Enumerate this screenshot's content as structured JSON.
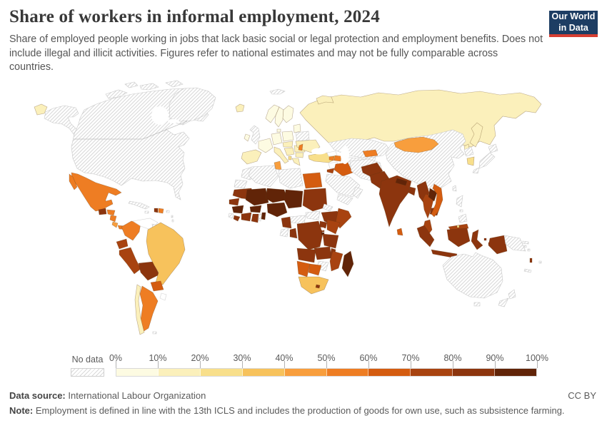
{
  "header": {
    "title": "Share of workers in informal employment, 2024",
    "subtitle": "Share of employed people working in jobs that lack basic social or legal protection and employment benefits. Does not include illegal and illicit activities. Figures refer to national estimates and may not be fully comparable across countries.",
    "logo": {
      "line1": "Our World",
      "line2": "in Data",
      "bg_color": "#1d3d63",
      "stripe_color": "#d63e32"
    }
  },
  "legend": {
    "no_data_label": "No data",
    "tick_labels": [
      "0%",
      "10%",
      "20%",
      "30%",
      "40%",
      "50%",
      "60%",
      "70%",
      "80%",
      "90%",
      "100%"
    ],
    "bin_colors": [
      "#fdfbe2",
      "#fbf0bb",
      "#f8df8b",
      "#f7c25c",
      "#f89e3d",
      "#ee7d23",
      "#d45c10",
      "#a84310",
      "#8c350e",
      "#612408"
    ]
  },
  "footer": {
    "source_label": "Data source:",
    "source_text": "International Labour Organization",
    "license": "CC BY",
    "note_label": "Note:",
    "note_text": "Employment is defined in line with the 13th ICLS and includes the production of goods for own use, such as subsistence farming."
  },
  "chart_data": {
    "type": "heatmap",
    "subtype": "choropleth-world-map",
    "title": "Share of workers in informal employment, 2024",
    "unit": "%",
    "year": 2024,
    "value_range": [
      0,
      100
    ],
    "bins": [
      0,
      10,
      20,
      30,
      40,
      50,
      60,
      70,
      80,
      90,
      100
    ],
    "regions": [
      {
        "id": "canada",
        "name": "Canada",
        "value": null,
        "status": "no-data"
      },
      {
        "id": "united-states",
        "name": "United States",
        "value": null,
        "status": "no-data"
      },
      {
        "id": "greenland",
        "name": "Greenland",
        "value": null,
        "status": "no-data"
      },
      {
        "id": "iceland",
        "name": "Iceland",
        "value": 10
      },
      {
        "id": "mexico",
        "name": "Mexico",
        "value": 54
      },
      {
        "id": "guatemala",
        "name": "Guatemala",
        "value": 82
      },
      {
        "id": "honduras",
        "name": "Honduras",
        "value": 56
      },
      {
        "id": "nicaragua",
        "name": "Nicaragua",
        "value": 58
      },
      {
        "id": "costa-rica",
        "name": "Costa Rica",
        "value": 42
      },
      {
        "id": "panama",
        "name": "Panama",
        "value": 52
      },
      {
        "id": "cuba",
        "name": "Cuba",
        "value": null,
        "status": "no-data"
      },
      {
        "id": "jamaica",
        "name": "Jamaica",
        "value": null,
        "status": "no-data"
      },
      {
        "id": "haiti",
        "name": "Haiti",
        "value": 88
      },
      {
        "id": "dominican-republic",
        "name": "Dominican Republic",
        "value": 55
      },
      {
        "id": "puerto-rico",
        "name": "Puerto Rico",
        "value": null,
        "status": "no-data"
      },
      {
        "id": "lesser-antilles",
        "name": "Lesser Antilles",
        "value": null,
        "status": "no-data"
      },
      {
        "id": "colombia",
        "name": "Colombia",
        "value": 56
      },
      {
        "id": "venezuela",
        "name": "Venezuela",
        "value": null,
        "status": "blank"
      },
      {
        "id": "guyana",
        "name": "Guyana and Suriname",
        "value": null,
        "status": "no-data"
      },
      {
        "id": "french-guiana",
        "name": "French Guiana",
        "value": null,
        "status": "blank"
      },
      {
        "id": "ecuador",
        "name": "Ecuador",
        "value": 72
      },
      {
        "id": "peru",
        "name": "Peru",
        "value": 72
      },
      {
        "id": "bolivia",
        "name": "Bolivia",
        "value": 84
      },
      {
        "id": "brazil",
        "name": "Brazil",
        "value": 38
      },
      {
        "id": "paraguay",
        "name": "Paraguay",
        "value": 66
      },
      {
        "id": "uruguay",
        "name": "Uruguay",
        "value": null,
        "status": "blank"
      },
      {
        "id": "argentina",
        "name": "Argentina",
        "value": 50
      },
      {
        "id": "chile",
        "name": "Chile",
        "value": 18
      },
      {
        "id": "falkland-islands",
        "name": "Falkland Islands",
        "value": null,
        "status": "no-data"
      },
      {
        "id": "norway",
        "name": "Norway",
        "value": 8
      },
      {
        "id": "sweden",
        "name": "Sweden",
        "value": 8
      },
      {
        "id": "finland",
        "name": "Finland",
        "value": 8
      },
      {
        "id": "denmark",
        "name": "Denmark",
        "value": 9
      },
      {
        "id": "united-kingdom",
        "name": "United Kingdom",
        "value": null,
        "status": "no-data"
      },
      {
        "id": "ireland",
        "name": "Ireland",
        "value": 8
      },
      {
        "id": "germany",
        "name": "Germany",
        "value": 6
      },
      {
        "id": "poland",
        "name": "Poland",
        "value": 9
      },
      {
        "id": "baltic-states",
        "name": "Baltic States",
        "value": 9
      },
      {
        "id": "belarus",
        "name": "Belarus",
        "value": null,
        "status": "no-data"
      },
      {
        "id": "france",
        "name": "France",
        "value": 6
      },
      {
        "id": "spain-portugal",
        "name": "Spain and Portugal",
        "value": 13
      },
      {
        "id": "italy",
        "name": "Italy",
        "value": 12
      },
      {
        "id": "czechia-hungary",
        "name": "Central Europe",
        "value": 10
      },
      {
        "id": "balkans",
        "name": "Western Balkans",
        "value": 17
      },
      {
        "id": "albania",
        "name": "Albania",
        "value": 27
      },
      {
        "id": "romania",
        "name": "Romania",
        "value": 13
      },
      {
        "id": "bulgaria",
        "name": "Bulgaria",
        "value": 16
      },
      {
        "id": "greece",
        "name": "Greece",
        "value": 18
      },
      {
        "id": "ukraine",
        "name": "Ukraine",
        "value": 16
      },
      {
        "id": "moldova",
        "name": "Moldova",
        "value": 55
      },
      {
        "id": "russia",
        "name": "Russia",
        "value": 15
      },
      {
        "id": "svalbard",
        "name": "Svalbard",
        "value": null,
        "status": "no-data"
      },
      {
        "id": "turkey",
        "name": "Turkey",
        "value": 28
      },
      {
        "id": "georgia",
        "name": "Georgia",
        "value": null,
        "status": "blank"
      },
      {
        "id": "armenia",
        "name": "Armenia",
        "value": 52
      },
      {
        "id": "azerbaijan",
        "name": "Azerbaijan",
        "value": 55
      },
      {
        "id": "syria",
        "name": "Syria",
        "value": null,
        "status": "blank"
      },
      {
        "id": "jordan",
        "name": "Jordan",
        "value": 75
      },
      {
        "id": "iraq",
        "name": "Iraq",
        "value": 64
      },
      {
        "id": "iran",
        "name": "Iran",
        "value": null,
        "status": "no-data"
      },
      {
        "id": "saudi-arabia",
        "name": "Saudi Arabia",
        "value": null,
        "status": "no-data"
      },
      {
        "id": "yemen",
        "name": "Yemen",
        "value": null,
        "status": "no-data"
      },
      {
        "id": "oman",
        "name": "Oman",
        "value": null,
        "status": "no-data"
      },
      {
        "id": "kazakhstan",
        "name": "Kazakhstan",
        "value": null,
        "status": "no-data"
      },
      {
        "id": "uzbekistan-turkmenistan",
        "name": "Uzbekistan and Turkmenistan",
        "value": null,
        "status": "no-data"
      },
      {
        "id": "kyrgyzstan",
        "name": "Kyrgyzstan",
        "value": 55
      },
      {
        "id": "tajikistan",
        "name": "Tajikistan",
        "value": null,
        "status": "no-data"
      },
      {
        "id": "afghanistan",
        "name": "Afghanistan",
        "value": 88
      },
      {
        "id": "pakistan",
        "name": "Pakistan",
        "value": 85
      },
      {
        "id": "india",
        "name": "India",
        "value": 88
      },
      {
        "id": "nepal",
        "name": "Nepal",
        "value": 92
      },
      {
        "id": "bangladesh",
        "name": "Bangladesh",
        "value": 85
      },
      {
        "id": "sri-lanka",
        "name": "Sri Lanka",
        "value": 64
      },
      {
        "id": "china",
        "name": "China",
        "value": null,
        "status": "no-data"
      },
      {
        "id": "mongolia",
        "name": "Mongolia",
        "value": 47
      },
      {
        "id": "north-korea",
        "name": "North Korea",
        "value": null,
        "status": "no-data"
      },
      {
        "id": "south-korea",
        "name": "South Korea",
        "value": 24
      },
      {
        "id": "japan",
        "name": "Japan",
        "value": null,
        "status": "no-data"
      },
      {
        "id": "taiwan",
        "name": "Taiwan",
        "value": null,
        "status": "no-data"
      },
      {
        "id": "myanmar",
        "name": "Myanmar",
        "value": 87
      },
      {
        "id": "thailand",
        "name": "Thailand",
        "value": 72
      },
      {
        "id": "laos",
        "name": "Laos",
        "value": 92
      },
      {
        "id": "cambodia",
        "name": "Cambodia",
        "value": 86
      },
      {
        "id": "vietnam",
        "name": "Vietnam",
        "value": 67
      },
      {
        "id": "malaysia",
        "name": "Malaysia",
        "value": 72
      },
      {
        "id": "brunei",
        "name": "Brunei",
        "value": 25
      },
      {
        "id": "indonesia",
        "name": "Indonesia",
        "value": 82
      },
      {
        "id": "timor-leste",
        "name": "Timor-Leste",
        "value": 82
      },
      {
        "id": "philippines",
        "name": "Philippines",
        "value": null,
        "status": "no-data"
      },
      {
        "id": "papua-new-guinea",
        "name": "Papua New Guinea",
        "value": null,
        "status": "no-data"
      },
      {
        "id": "morocco",
        "name": "Morocco",
        "value": null,
        "status": "no-data"
      },
      {
        "id": "western-sahara",
        "name": "Western Sahara",
        "value": null,
        "status": "no-data"
      },
      {
        "id": "algeria",
        "name": "Algeria",
        "value": null,
        "status": "no-data"
      },
      {
        "id": "tunisia",
        "name": "Tunisia",
        "value": 44
      },
      {
        "id": "libya",
        "name": "Libya",
        "value": null,
        "status": "no-data"
      },
      {
        "id": "egypt",
        "name": "Egypt",
        "value": 63
      },
      {
        "id": "mauritania",
        "name": "Mauritania",
        "value": 85
      },
      {
        "id": "senegal",
        "name": "Senegal",
        "value": 87
      },
      {
        "id": "guinea",
        "name": "Guinea",
        "value": 92
      },
      {
        "id": "sierra-leone",
        "name": "Sierra Leone",
        "value": null,
        "status": "no-data"
      },
      {
        "id": "liberia",
        "name": "Liberia",
        "value": 85
      },
      {
        "id": "mali",
        "name": "Mali",
        "value": 93
      },
      {
        "id": "burkina-faso",
        "name": "Burkina Faso",
        "value": 94
      },
      {
        "id": "cote-divoire",
        "name": "Côte d'Ivoire",
        "value": 87
      },
      {
        "id": "ghana",
        "name": "Ghana",
        "value": 85
      },
      {
        "id": "togo",
        "name": "Togo",
        "value": null,
        "status": "no-data"
      },
      {
        "id": "benin",
        "name": "Benin",
        "value": 94
      },
      {
        "id": "niger",
        "name": "Niger",
        "value": 95
      },
      {
        "id": "nigeria",
        "name": "Nigeria",
        "value": 92
      },
      {
        "id": "chad",
        "name": "Chad",
        "value": 92
      },
      {
        "id": "sudan",
        "name": "Sudan",
        "value": 87
      },
      {
        "id": "eritrea",
        "name": "Eritrea",
        "value": null,
        "status": "no-data"
      },
      {
        "id": "ethiopia",
        "name": "Ethiopia",
        "value": 86
      },
      {
        "id": "somalia",
        "name": "Somalia",
        "value": 75
      },
      {
        "id": "south-sudan",
        "name": "South Sudan",
        "value": null,
        "status": "no-data"
      },
      {
        "id": "central-african-republic",
        "name": "Central African Republic",
        "value": null,
        "status": "no-data"
      },
      {
        "id": "cameroon",
        "name": "Cameroon",
        "value": 87
      },
      {
        "id": "gabon",
        "name": "Gabon",
        "value": null,
        "status": "no-data"
      },
      {
        "id": "congo",
        "name": "Congo",
        "value": 82
      },
      {
        "id": "dr-congo",
        "name": "Democratic Republic of Congo",
        "value": 88
      },
      {
        "id": "uganda",
        "name": "Uganda",
        "value": 86
      },
      {
        "id": "kenya",
        "name": "Kenya",
        "value": 78
      },
      {
        "id": "rwanda",
        "name": "Rwanda",
        "value": 84
      },
      {
        "id": "burundi",
        "name": "Burundi",
        "value": 91
      },
      {
        "id": "tanzania",
        "name": "Tanzania",
        "value": 85
      },
      {
        "id": "angola",
        "name": "Angola",
        "value": 88
      },
      {
        "id": "zambia",
        "name": "Zambia",
        "value": 85
      },
      {
        "id": "malawi",
        "name": "Malawi",
        "value": 83
      },
      {
        "id": "mozambique",
        "name": "Mozambique",
        "value": 78
      },
      {
        "id": "zimbabwe",
        "name": "Zimbabwe",
        "value": null,
        "status": "no-data"
      },
      {
        "id": "botswana",
        "name": "Botswana",
        "value": 64
      },
      {
        "id": "namibia",
        "name": "Namibia",
        "value": 62
      },
      {
        "id": "south-africa",
        "name": "South Africa",
        "value": 36
      },
      {
        "id": "lesotho",
        "name": "Lesotho",
        "value": 82
      },
      {
        "id": "madagascar",
        "name": "Madagascar",
        "value": 96
      },
      {
        "id": "australia",
        "name": "Australia",
        "value": null,
        "status": "no-data"
      },
      {
        "id": "new-zealand",
        "name": "New Zealand",
        "value": null,
        "status": "no-data"
      },
      {
        "id": "solomon-islands",
        "name": "Solomon Islands",
        "value": null,
        "status": "no-data"
      },
      {
        "id": "vanuatu",
        "name": "Vanuatu",
        "value": 82
      },
      {
        "id": "fiji",
        "name": "Fiji",
        "value": null,
        "status": "no-data"
      },
      {
        "id": "new-caledonia",
        "name": "New Caledonia",
        "value": null,
        "status": "no-data"
      }
    ]
  }
}
